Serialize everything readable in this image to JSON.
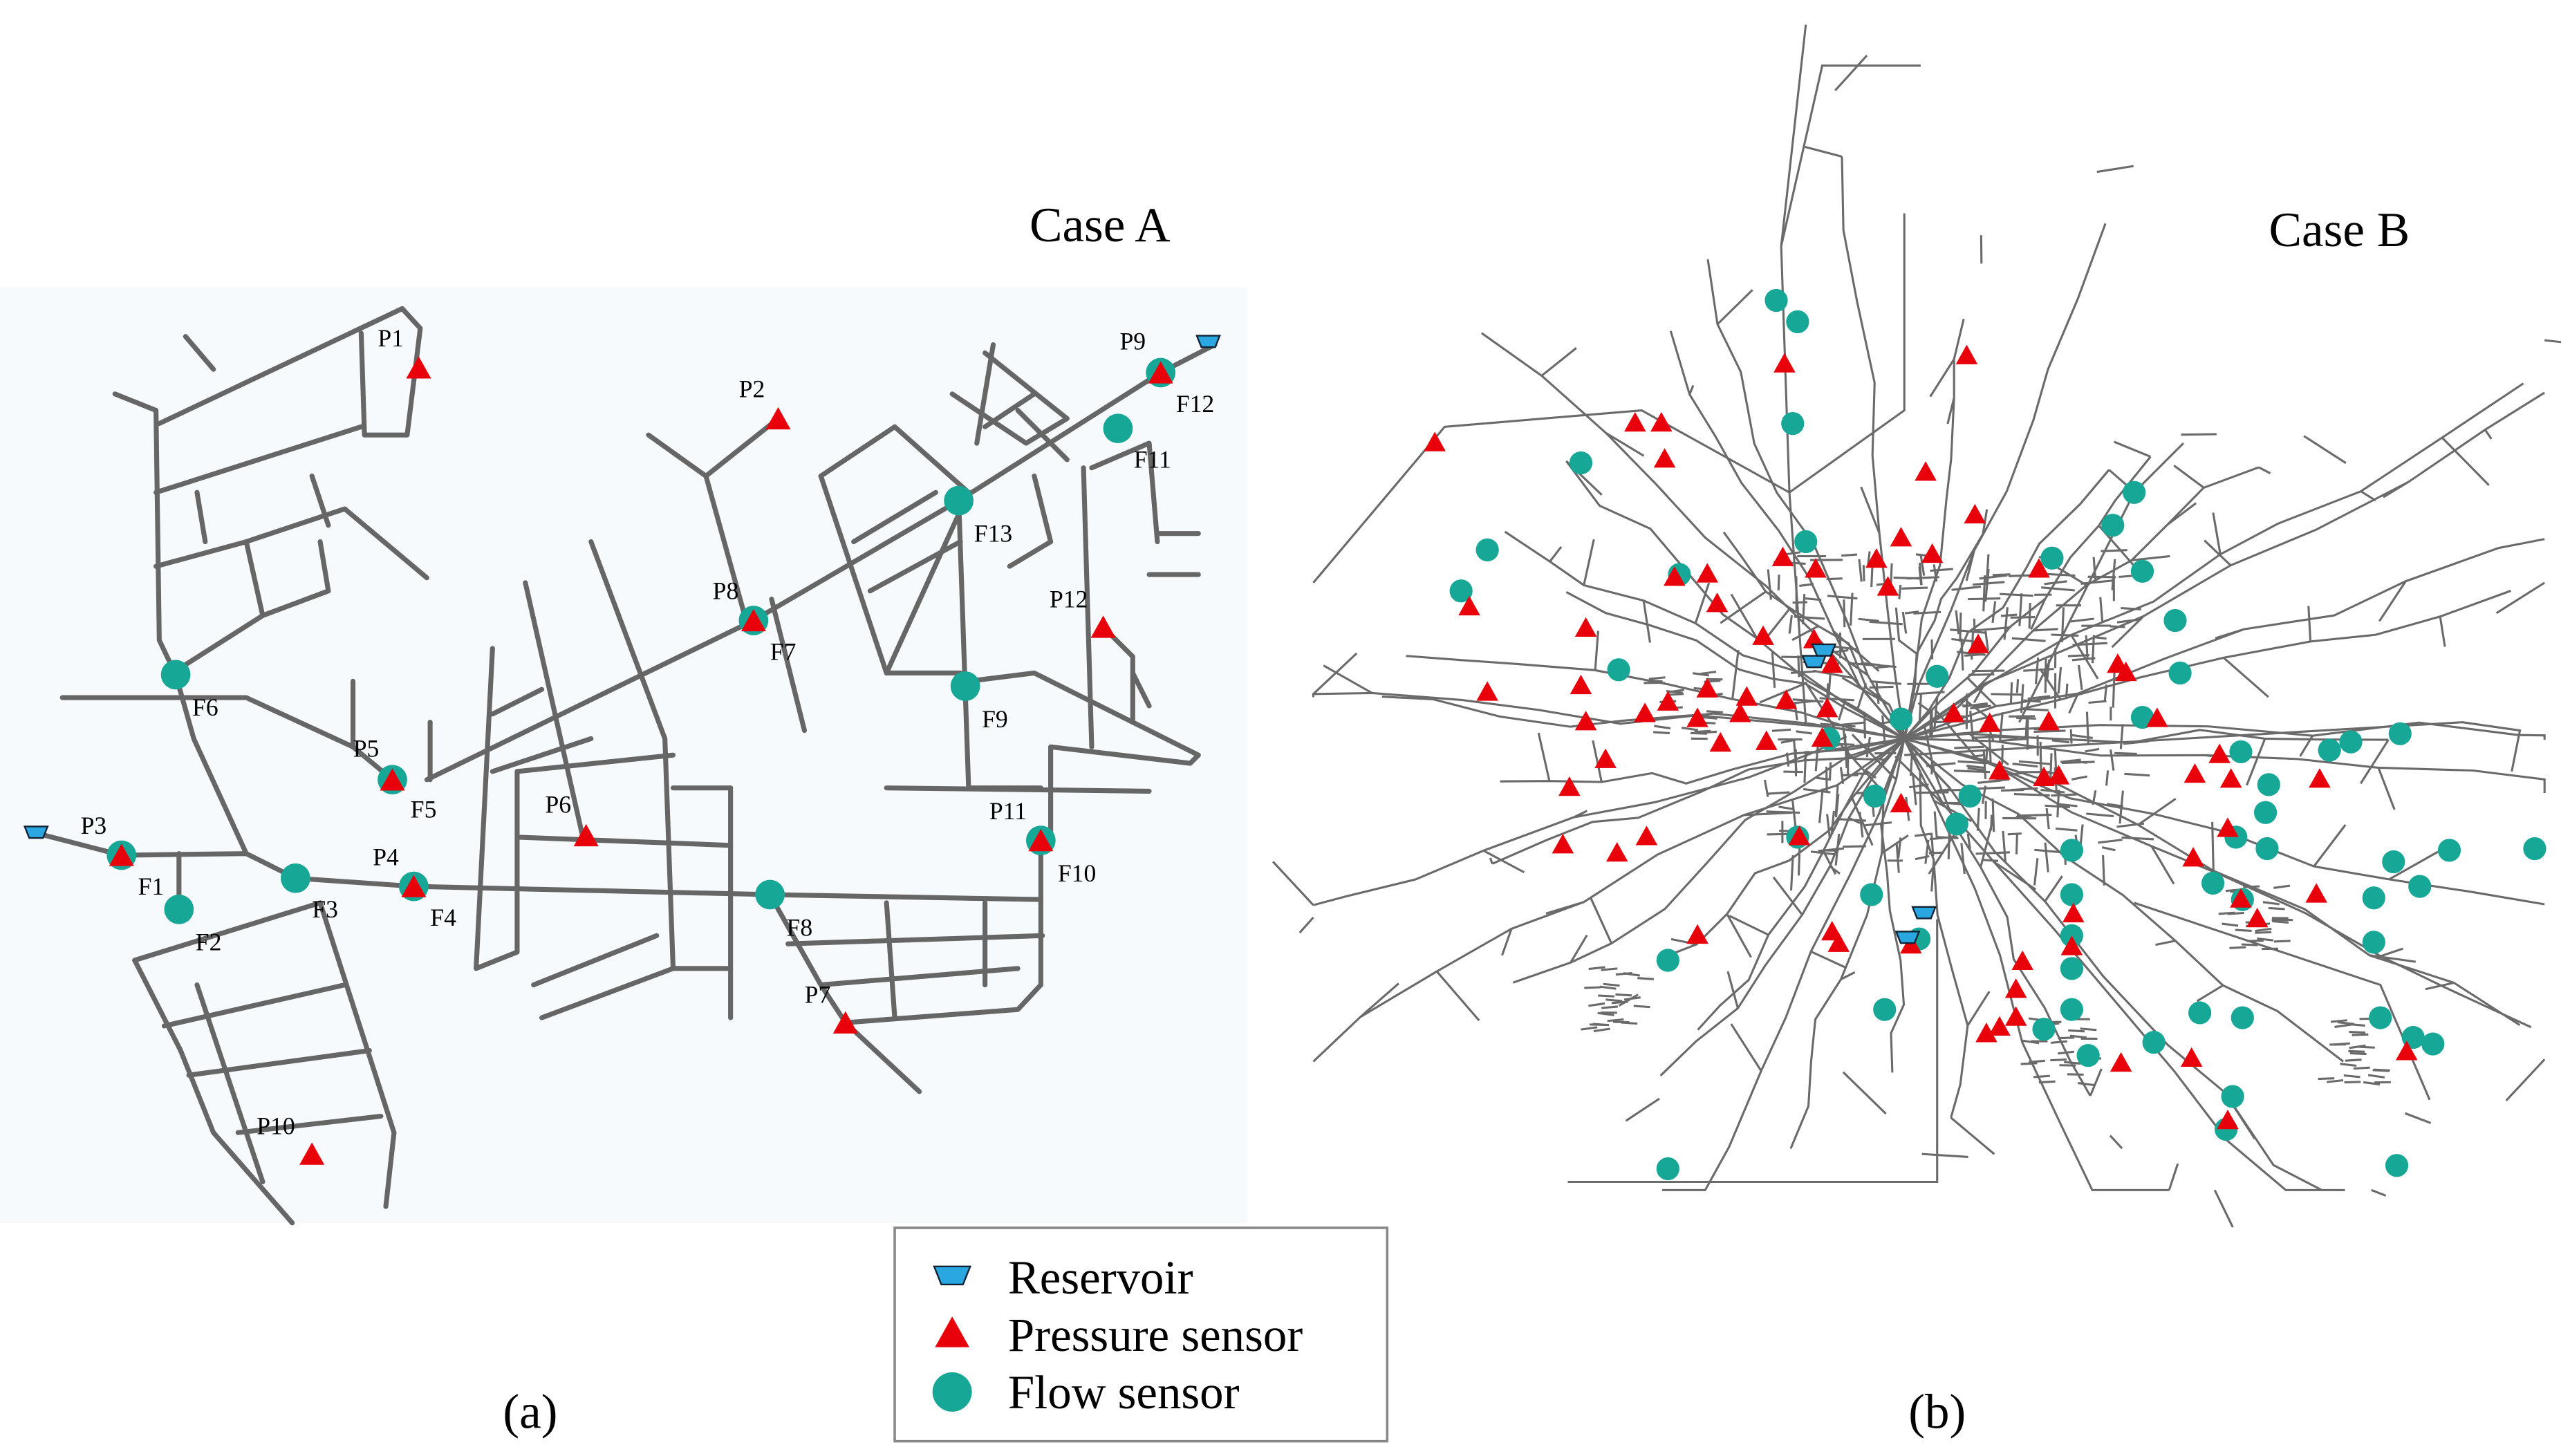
{
  "case_a": {
    "title": "Case A",
    "caption": "(a)",
    "labels": [
      "P1",
      "P2",
      "P9",
      "F12",
      "F11",
      "F13",
      "P12",
      "P8",
      "F7",
      "F6",
      "F9",
      "P5",
      "F5",
      "P6",
      "P3",
      "F1",
      "F2",
      "F3",
      "P4",
      "F4",
      "P11",
      "F10",
      "F8",
      "P7",
      "P10"
    ]
  },
  "case_b": {
    "title": "Case B",
    "caption": "(b)"
  },
  "legend": [
    "Reservoir",
    "Pressure sensor",
    "Flow sensor"
  ]
}
